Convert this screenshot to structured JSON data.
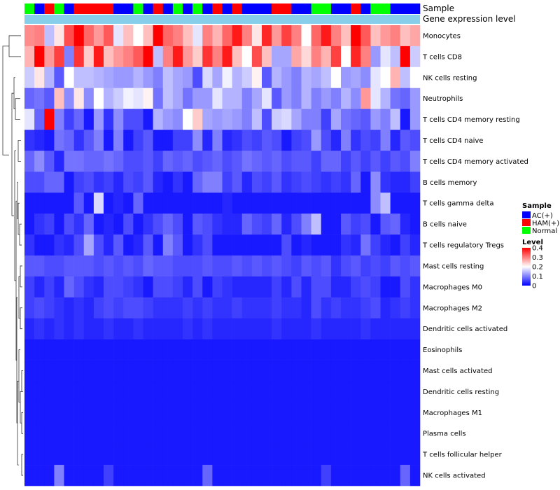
{
  "chart_data": {
    "type": "heatmap",
    "annotation_tracks": [
      {
        "label": "Sample"
      },
      {
        "label": "Gene expression level"
      }
    ],
    "sample_groups": [
      "Normal",
      "AC(+)",
      "HAM(+)",
      "Normal",
      "AC(+)",
      "HAM(+)",
      "HAM(+)",
      "HAM(+)",
      "HAM(+)",
      "AC(+)",
      "AC(+)",
      "Normal",
      "AC(+)",
      "HAM(+)",
      "AC(+)",
      "Normal",
      "AC(+)",
      "Normal",
      "AC(+)",
      "HAM(+)",
      "AC(+)",
      "HAM(+)",
      "AC(+)",
      "AC(+)",
      "AC(+)",
      "HAM(+)",
      "HAM(+)",
      "AC(+)",
      "AC(+)",
      "Normal",
      "Normal",
      "AC(+)",
      "AC(+)",
      "HAM(+)",
      "AC(+)",
      "Normal",
      "Normal",
      "AC(+)",
      "AC(+)",
      "AC(+)"
    ],
    "sample_colors": {
      "AC(+)": "#0000ff",
      "HAM(+)": "#ff0000",
      "Normal": "#00ff00"
    },
    "rows": [
      {
        "name": "Monocytes",
        "values": [
          0.29,
          0.3,
          0.15,
          0.22,
          0.34,
          0.4,
          0.32,
          0.28,
          0.33,
          0.18,
          0.25,
          0.2,
          0.25,
          0.4,
          0.32,
          0.3,
          0.25,
          0.18,
          0.3,
          0.26,
          0.32,
          0.38,
          0.3,
          0.22,
          0.37,
          0.28,
          0.35,
          0.3,
          0.2,
          0.32,
          0.38,
          0.3,
          0.25,
          0.4,
          0.33,
          0.25,
          0.28,
          0.3,
          0.25,
          0.27
        ]
      },
      {
        "name": "T cells CD8",
        "values": [
          0.26,
          0.4,
          0.28,
          0.35,
          0.1,
          0.36,
          0.24,
          0.38,
          0.25,
          0.28,
          0.3,
          0.33,
          0.4,
          0.15,
          0.3,
          0.38,
          0.28,
          0.24,
          0.36,
          0.3,
          0.38,
          0.25,
          0.2,
          0.34,
          0.25,
          0.13,
          0.13,
          0.27,
          0.23,
          0.3,
          0.26,
          0.35,
          0.2,
          0.37,
          0.3,
          0.12,
          0.18,
          0.15,
          0.4,
          0.16
        ]
      },
      {
        "name": "NK cells resting",
        "values": [
          0.16,
          0.22,
          0.14,
          0.07,
          0.2,
          0.15,
          0.15,
          0.14,
          0.13,
          0.12,
          0.12,
          0.14,
          0.12,
          0.1,
          0.15,
          0.13,
          0.12,
          0.06,
          0.17,
          0.13,
          0.19,
          0.14,
          0.16,
          0.21,
          0.07,
          0.14,
          0.12,
          0.1,
          0.14,
          0.13,
          0.15,
          0.2,
          0.12,
          0.13,
          0.11,
          0.18,
          0.2,
          0.26,
          0.15,
          0.2
        ]
      },
      {
        "name": "Neutrophils",
        "values": [
          0.08,
          0.09,
          0.07,
          0.25,
          0.11,
          0.22,
          0.11,
          0.2,
          0.14,
          0.16,
          0.19,
          0.18,
          0.21,
          0.09,
          0.15,
          0.13,
          0.09,
          0.12,
          0.12,
          0.18,
          0.14,
          0.14,
          0.1,
          0.13,
          0.18,
          0.07,
          0.12,
          0.1,
          0.14,
          0.1,
          0.12,
          0.1,
          0.14,
          0.11,
          0.28,
          0.18,
          0.14,
          0.09,
          0.08,
          0.12
        ]
      },
      {
        "name": "T cells CD4 memory resting",
        "values": [
          0.18,
          0.08,
          0.4,
          0.1,
          0.05,
          0.08,
          0.02,
          0.12,
          0.04,
          0.11,
          0.06,
          0.06,
          0.02,
          0.14,
          0.12,
          0.11,
          0.2,
          0.24,
          0.13,
          0.12,
          0.13,
          0.12,
          0.1,
          0.15,
          0.06,
          0.16,
          0.17,
          0.13,
          0.1,
          0.1,
          0.05,
          0.13,
          0.09,
          0.08,
          0.07,
          0.12,
          0.1,
          0.15,
          0.02,
          0.12
        ]
      },
      {
        "name": "T cells CD4 naive",
        "values": [
          0.04,
          0.03,
          0.02,
          0.09,
          0.08,
          0.04,
          0.07,
          0.1,
          0.02,
          0.1,
          0.02,
          0.05,
          0.07,
          0.02,
          0.02,
          0.05,
          0.05,
          0.11,
          0.03,
          0.1,
          0.03,
          0.04,
          0.06,
          0.05,
          0.07,
          0.06,
          0.02,
          0.05,
          0.06,
          0.12,
          0.06,
          0.03,
          0.1,
          0.04,
          0.06,
          0.05,
          0.1,
          0.03,
          0.07,
          0.06
        ]
      },
      {
        "name": "T cells CD4 memory activated",
        "values": [
          0.08,
          0.11,
          0.07,
          0.03,
          0.09,
          0.09,
          0.08,
          0.08,
          0.09,
          0.08,
          0.06,
          0.06,
          0.07,
          0.05,
          0.08,
          0.07,
          0.08,
          0.06,
          0.07,
          0.08,
          0.06,
          0.07,
          0.09,
          0.08,
          0.07,
          0.08,
          0.06,
          0.07,
          0.07,
          0.05,
          0.08,
          0.08,
          0.05,
          0.07,
          0.05,
          0.07,
          0.05,
          0.07,
          0.06,
          0.1
        ]
      },
      {
        "name": "B cells memory",
        "values": [
          0.06,
          0.06,
          0.08,
          0.08,
          0.02,
          0.05,
          0.06,
          0.04,
          0.05,
          0.03,
          0.06,
          0.05,
          0.07,
          0.03,
          0.02,
          0.04,
          0.02,
          0.08,
          0.1,
          0.1,
          0.05,
          0.07,
          0.03,
          0.06,
          0.05,
          0.07,
          0.04,
          0.05,
          0.06,
          0.05,
          0.04,
          0.05,
          0.04,
          0.08,
          0.02,
          0.11,
          0.04,
          0.03,
          0.03,
          0.05
        ]
      },
      {
        "name": "T cells gamma delta",
        "values": [
          0.02,
          0.02,
          0.02,
          0.02,
          0.02,
          0.07,
          0.02,
          0.17,
          0.02,
          0.03,
          0.02,
          0.08,
          0.02,
          0.02,
          0.02,
          0.02,
          0.02,
          0.02,
          0.02,
          0.02,
          0.03,
          0.02,
          0.02,
          0.02,
          0.02,
          0.02,
          0.02,
          0.02,
          0.02,
          0.02,
          0.02,
          0.02,
          0.02,
          0.02,
          0.02,
          0.11,
          0.15,
          0.02,
          0.02,
          0.02
        ]
      },
      {
        "name": "B cells naive",
        "values": [
          0.02,
          0.04,
          0.05,
          0.02,
          0.06,
          0.04,
          0.08,
          0.02,
          0.03,
          0.02,
          0.06,
          0.02,
          0.04,
          0.06,
          0.08,
          0.06,
          0.02,
          0.07,
          0.06,
          0.04,
          0.03,
          0.03,
          0.08,
          0.06,
          0.05,
          0.08,
          0.03,
          0.06,
          0.1,
          0.15,
          0.02,
          0.02,
          0.07,
          0.05,
          0.06,
          0.02,
          0.07,
          0.08,
          0.03,
          0.02
        ]
      },
      {
        "name": "T cells regulatory  Tregs",
        "values": [
          0.04,
          0.02,
          0.02,
          0.04,
          0.03,
          0.06,
          0.13,
          0.06,
          0.03,
          0.07,
          0.02,
          0.03,
          0.07,
          0.02,
          0.1,
          0.07,
          0.02,
          0.04,
          0.06,
          0.02,
          0.02,
          0.02,
          0.02,
          0.02,
          0.02,
          0.02,
          0.06,
          0.02,
          0.03,
          0.02,
          0.02,
          0.02,
          0.04,
          0.03,
          0.09,
          0.05,
          0.03,
          0.02,
          0.05,
          0.03
        ]
      },
      {
        "name": "Mast cells resting",
        "values": [
          0.07,
          0.07,
          0.06,
          0.06,
          0.07,
          0.07,
          0.07,
          0.06,
          0.07,
          0.06,
          0.07,
          0.06,
          0.08,
          0.07,
          0.07,
          0.06,
          0.06,
          0.06,
          0.07,
          0.06,
          0.06,
          0.07,
          0.06,
          0.07,
          0.06,
          0.07,
          0.06,
          0.05,
          0.07,
          0.06,
          0.07,
          0.04,
          0.06,
          0.07,
          0.05,
          0.06,
          0.05,
          0.07,
          0.06,
          0.07
        ]
      },
      {
        "name": "Macrophages M0",
        "values": [
          0.05,
          0.03,
          0.05,
          0.03,
          0.08,
          0.06,
          0.04,
          0.03,
          0.06,
          0.06,
          0.05,
          0.04,
          0.02,
          0.06,
          0.06,
          0.05,
          0.03,
          0.06,
          0.02,
          0.05,
          0.04,
          0.03,
          0.03,
          0.03,
          0.03,
          0.05,
          0.03,
          0.06,
          0.03,
          0.06,
          0.06,
          0.03,
          0.03,
          0.05,
          0.06,
          0.05,
          0.02,
          0.02,
          0.06,
          0.04
        ]
      },
      {
        "name": "Macrophages M2",
        "values": [
          0.05,
          0.06,
          0.05,
          0.04,
          0.03,
          0.04,
          0.03,
          0.05,
          0.06,
          0.05,
          0.06,
          0.06,
          0.05,
          0.04,
          0.04,
          0.04,
          0.05,
          0.04,
          0.05,
          0.04,
          0.04,
          0.05,
          0.04,
          0.04,
          0.04,
          0.05,
          0.04,
          0.04,
          0.03,
          0.06,
          0.04,
          0.05,
          0.04,
          0.04,
          0.05,
          0.06,
          0.03,
          0.04,
          0.05,
          0.04
        ]
      },
      {
        "name": "Dendritic cells activated",
        "values": [
          0.03,
          0.04,
          0.03,
          0.04,
          0.03,
          0.04,
          0.03,
          0.03,
          0.04,
          0.03,
          0.03,
          0.04,
          0.03,
          0.03,
          0.03,
          0.03,
          0.04,
          0.03,
          0.04,
          0.03,
          0.03,
          0.03,
          0.03,
          0.03,
          0.03,
          0.04,
          0.03,
          0.03,
          0.03,
          0.04,
          0.03,
          0.03,
          0.03,
          0.03,
          0.04,
          0.03,
          0.03,
          0.03,
          0.03,
          0.03
        ]
      },
      {
        "name": "Eosinophils",
        "values": [
          0.02,
          0.02,
          0.02,
          0.02,
          0.02,
          0.02,
          0.02,
          0.02,
          0.02,
          0.02,
          0.02,
          0.02,
          0.02,
          0.02,
          0.02,
          0.02,
          0.02,
          0.02,
          0.02,
          0.02,
          0.02,
          0.02,
          0.02,
          0.02,
          0.02,
          0.02,
          0.02,
          0.02,
          0.02,
          0.02,
          0.02,
          0.02,
          0.02,
          0.02,
          0.02,
          0.02,
          0.02,
          0.02,
          0.02,
          0.02
        ]
      },
      {
        "name": "Mast cells activated",
        "values": [
          0.02,
          0.02,
          0.02,
          0.02,
          0.02,
          0.02,
          0.02,
          0.02,
          0.02,
          0.02,
          0.02,
          0.02,
          0.02,
          0.02,
          0.02,
          0.02,
          0.02,
          0.02,
          0.02,
          0.02,
          0.02,
          0.02,
          0.02,
          0.02,
          0.02,
          0.02,
          0.02,
          0.02,
          0.02,
          0.02,
          0.02,
          0.02,
          0.02,
          0.02,
          0.02,
          0.02,
          0.02,
          0.02,
          0.02,
          0.02
        ]
      },
      {
        "name": "Dendritic cells resting",
        "values": [
          0.02,
          0.02,
          0.02,
          0.02,
          0.02,
          0.02,
          0.02,
          0.02,
          0.02,
          0.02,
          0.02,
          0.02,
          0.02,
          0.02,
          0.02,
          0.02,
          0.02,
          0.02,
          0.02,
          0.02,
          0.02,
          0.02,
          0.02,
          0.02,
          0.02,
          0.02,
          0.02,
          0.02,
          0.02,
          0.02,
          0.02,
          0.02,
          0.02,
          0.02,
          0.02,
          0.02,
          0.02,
          0.02,
          0.02,
          0.02
        ]
      },
      {
        "name": "Macrophages M1",
        "values": [
          0.02,
          0.02,
          0.02,
          0.02,
          0.02,
          0.02,
          0.02,
          0.02,
          0.02,
          0.02,
          0.02,
          0.02,
          0.02,
          0.02,
          0.02,
          0.02,
          0.02,
          0.02,
          0.02,
          0.02,
          0.02,
          0.02,
          0.02,
          0.02,
          0.02,
          0.02,
          0.02,
          0.02,
          0.02,
          0.02,
          0.02,
          0.02,
          0.02,
          0.02,
          0.02,
          0.02,
          0.02,
          0.02,
          0.02,
          0.02
        ]
      },
      {
        "name": "Plasma cells",
        "values": [
          0.02,
          0.02,
          0.02,
          0.02,
          0.02,
          0.02,
          0.02,
          0.02,
          0.02,
          0.02,
          0.02,
          0.02,
          0.02,
          0.02,
          0.02,
          0.02,
          0.02,
          0.02,
          0.02,
          0.02,
          0.02,
          0.02,
          0.02,
          0.02,
          0.02,
          0.02,
          0.02,
          0.02,
          0.02,
          0.02,
          0.02,
          0.02,
          0.02,
          0.02,
          0.02,
          0.02,
          0.02,
          0.02,
          0.02,
          0.02
        ]
      },
      {
        "name": "T cells follicular helper",
        "values": [
          0.02,
          0.02,
          0.02,
          0.02,
          0.02,
          0.02,
          0.02,
          0.02,
          0.02,
          0.02,
          0.02,
          0.02,
          0.02,
          0.02,
          0.02,
          0.02,
          0.02,
          0.02,
          0.02,
          0.02,
          0.02,
          0.02,
          0.02,
          0.02,
          0.02,
          0.02,
          0.02,
          0.02,
          0.02,
          0.02,
          0.02,
          0.02,
          0.02,
          0.02,
          0.02,
          0.02,
          0.02,
          0.02,
          0.02,
          0.02
        ]
      },
      {
        "name": "NK cells activated",
        "values": [
          0.02,
          0.02,
          0.02,
          0.1,
          0.02,
          0.02,
          0.02,
          0.02,
          0.05,
          0.02,
          0.02,
          0.02,
          0.02,
          0.02,
          0.02,
          0.02,
          0.02,
          0.02,
          0.08,
          0.02,
          0.02,
          0.02,
          0.02,
          0.02,
          0.02,
          0.02,
          0.02,
          0.02,
          0.02,
          0.02,
          0.05,
          0.02,
          0.02,
          0.02,
          0.02,
          0.02,
          0.02,
          0.02,
          0.08,
          0.02
        ]
      }
    ],
    "legend": {
      "sample_title": "Sample",
      "sample_entries": [
        {
          "label": "AC(+)",
          "color": "#0000ff"
        },
        {
          "label": "HAM(+)",
          "color": "#ff0000"
        },
        {
          "label": "Normal",
          "color": "#00ff00"
        }
      ],
      "level_title": "Level",
      "level_ticks": [
        "0.4",
        "0.3",
        "0.2",
        "0.1",
        "0"
      ],
      "level_range": [
        0,
        0.4
      ],
      "gradient": [
        "#0000ff",
        "#ffffff",
        "#ff0000"
      ]
    }
  }
}
